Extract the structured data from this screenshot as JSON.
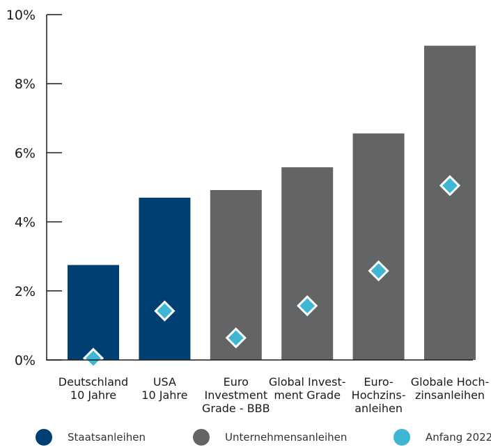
{
  "chart_data": {
    "type": "bar",
    "title": "",
    "xlabel": "",
    "ylabel": "",
    "ylim": [
      0,
      10
    ],
    "yticks": [
      "0%",
      "2%",
      "4%",
      "6%",
      "8%",
      "10%"
    ],
    "categories": [
      [
        "Deutschland",
        "10 Jahre"
      ],
      [
        "USA",
        "10 Jahre"
      ],
      [
        "Euro",
        "Investment",
        "Grade - BBB"
      ],
      [
        "Global Invest-",
        "ment Grade"
      ],
      [
        "Euro-",
        "Hochzins-",
        "anleihen"
      ],
      [
        "Globale Hoch-",
        "zinsanleihen"
      ]
    ],
    "series": [
      {
        "name": "Staatsanleihen / Unternehmensanleihen",
        "kind": "bar",
        "values": [
          2.75,
          4.7,
          4.92,
          5.58,
          6.56,
          9.1
        ],
        "groups": [
          "Staatsanleihen",
          "Staatsanleihen",
          "Unternehmensanleihen",
          "Unternehmensanleihen",
          "Unternehmensanleihen",
          "Unternehmensanleihen"
        ]
      },
      {
        "name": "Anfang 2022",
        "kind": "marker",
        "values": [
          0.05,
          1.42,
          0.64,
          1.57,
          2.58,
          5.05
        ]
      }
    ],
    "legend": [
      {
        "label": "Staatsanleihen",
        "color": "#003f72"
      },
      {
        "label": "Unternehmensanleihen",
        "color": "#636466"
      },
      {
        "label": "Anfang 2022",
        "color": "#3fb6d3"
      }
    ],
    "legend_position": "bottom",
    "grid": false,
    "colors": {
      "Staatsanleihen": "#003f72",
      "Unternehmensanleihen": "#636466",
      "marker": "#3fb6d3",
      "axis": "#1a1a1a"
    }
  }
}
